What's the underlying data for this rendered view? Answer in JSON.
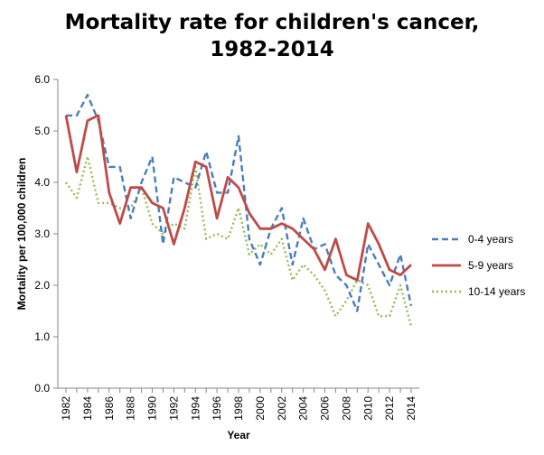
{
  "chart_data": {
    "type": "line",
    "title_lines": [
      "Mortality rate for children's cancer,",
      "1982-2014"
    ],
    "xlabel": "Year",
    "ylabel": "Mortality per 100,000 children",
    "ylim": [
      0,
      6
    ],
    "y_ticks": [
      "0.0",
      "1.0",
      "2.0",
      "3.0",
      "4.0",
      "5.0",
      "6.0"
    ],
    "x_tick_labels": [
      "1982",
      "1984",
      "1986",
      "1988",
      "1990",
      "1992",
      "1994",
      "1996",
      "1998",
      "2000",
      "2002",
      "2004",
      "2006",
      "2008",
      "2010",
      "2012",
      "2014"
    ],
    "x": [
      1982,
      1983,
      1984,
      1985,
      1986,
      1987,
      1988,
      1989,
      1990,
      1991,
      1992,
      1993,
      1994,
      1995,
      1996,
      1997,
      1998,
      1999,
      2000,
      2001,
      2002,
      2003,
      2004,
      2005,
      2006,
      2007,
      2008,
      2009,
      2010,
      2011,
      2012,
      2013,
      2014
    ],
    "grid": false,
    "legend_position": "right",
    "series": [
      {
        "name": "0-4 years",
        "color": "#4a7ebb",
        "dash": "dashed",
        "values": [
          5.3,
          5.3,
          5.7,
          5.2,
          4.3,
          4.3,
          3.3,
          4.0,
          4.5,
          2.8,
          4.1,
          4.0,
          3.9,
          4.6,
          3.8,
          3.8,
          4.9,
          2.9,
          2.4,
          3.1,
          3.5,
          2.4,
          3.3,
          2.7,
          2.8,
          2.2,
          2.0,
          1.5,
          2.8,
          2.4,
          2.0,
          2.6,
          1.6
        ]
      },
      {
        "name": "5-9 years",
        "color": "#be4b48",
        "dash": "solid",
        "values": [
          5.3,
          4.2,
          5.2,
          5.3,
          3.8,
          3.2,
          3.9,
          3.9,
          3.6,
          3.5,
          2.8,
          3.5,
          4.4,
          4.3,
          3.3,
          4.1,
          3.9,
          3.4,
          3.1,
          3.1,
          3.2,
          3.1,
          2.9,
          2.7,
          2.3,
          2.9,
          2.2,
          2.1,
          3.2,
          2.8,
          2.3,
          2.2,
          2.4
        ]
      },
      {
        "name": "10-14 years",
        "color": "#98b954",
        "dash": "dotted",
        "values": [
          4.0,
          3.7,
          4.5,
          3.6,
          3.6,
          3.5,
          3.5,
          3.9,
          3.2,
          3.0,
          3.2,
          3.1,
          4.3,
          2.9,
          3.0,
          2.9,
          3.5,
          2.6,
          2.8,
          2.6,
          2.9,
          2.1,
          2.4,
          2.2,
          1.9,
          1.4,
          1.7,
          2.1,
          2.0,
          1.4,
          1.4,
          2.0,
          1.2
        ]
      }
    ]
  }
}
